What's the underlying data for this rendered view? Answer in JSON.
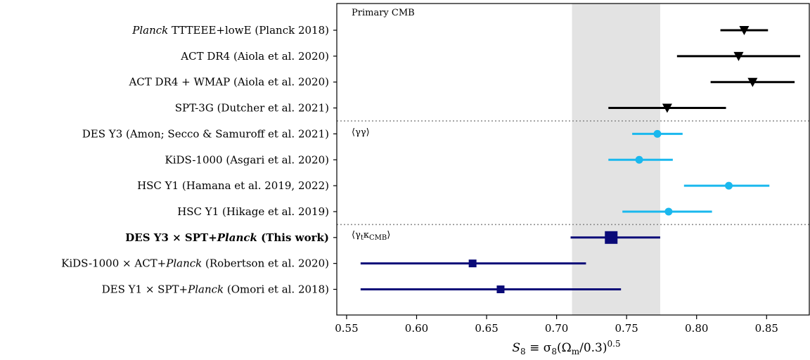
{
  "chart_data": {
    "type": "scatter",
    "xlabel": "S₈ ≡ σ₈(Ωm/0.3)^0.5",
    "xlabel_parts": {
      "s": "S",
      "s_sub": "8",
      "eq": " ≡ σ",
      "sig_sub": "8",
      "open": "(Ω",
      "om_sub": "m",
      "close": "/0.3)",
      "sup": "0.5"
    },
    "xlim": [
      0.543,
      0.881
    ],
    "xticks": [
      0.55,
      0.6,
      0.65,
      0.7,
      0.75,
      0.8,
      0.85
    ],
    "xtick_labels": [
      "0.55",
      "0.60",
      "0.65",
      "0.70",
      "0.75",
      "0.80",
      "0.85"
    ],
    "shaded_band": [
      0.711,
      0.774
    ],
    "groups": [
      {
        "label": "Primary CMB"
      },
      {
        "label": "⟨γγ⟩"
      },
      {
        "label_parts": {
          "pre": "⟨γ",
          "t": "t",
          "kappa": "κ",
          "cmb": "CMB",
          "post": "⟩"
        }
      }
    ],
    "rows": [
      {
        "label": "TTTEEE+lowE (Planck 2018)",
        "italic_prefix": "Planck",
        "value": 0.834,
        "err_low": 0.817,
        "err_high": 0.851,
        "marker": "triangle-down",
        "color": "#000000",
        "bold": false
      },
      {
        "label": "ACT DR4 (Aiola et al. 2020)",
        "value": 0.83,
        "err_low": 0.786,
        "err_high": 0.874,
        "marker": "triangle-down",
        "color": "#000000",
        "bold": false
      },
      {
        "label": "ACT DR4 + WMAP (Aiola et al. 2020)",
        "value": 0.84,
        "err_low": 0.81,
        "err_high": 0.87,
        "marker": "triangle-down",
        "color": "#000000",
        "bold": false
      },
      {
        "label": "SPT-3G (Dutcher et al. 2021)",
        "value": 0.779,
        "err_low": 0.737,
        "err_high": 0.821,
        "marker": "triangle-down",
        "color": "#000000",
        "bold": false
      },
      {
        "label": "DES Y3 (Amon; Secco & Samuroff et al. 2021)",
        "value": 0.772,
        "err_low": 0.754,
        "err_high": 0.79,
        "marker": "circle",
        "color": "#1ab8ee",
        "bold": false
      },
      {
        "label": "KiDS-1000 (Asgari et al. 2020)",
        "value": 0.759,
        "err_low": 0.737,
        "err_high": 0.783,
        "marker": "circle",
        "color": "#1ab8ee",
        "bold": false
      },
      {
        "label": "HSC Y1 (Hamana et al. 2019, 2022)",
        "value": 0.823,
        "err_low": 0.791,
        "err_high": 0.852,
        "marker": "circle",
        "color": "#1ab8ee",
        "bold": false
      },
      {
        "label": "HSC Y1 (Hikage et al. 2019)",
        "value": 0.78,
        "err_low": 0.747,
        "err_high": 0.811,
        "marker": "circle",
        "color": "#1ab8ee",
        "bold": false
      },
      {
        "label": "DES Y3 × SPT+Planck (This work)",
        "parts": [
          "DES Y3 × SPT+",
          "Planck",
          " (This work)"
        ],
        "value": 0.739,
        "err_low": 0.71,
        "err_high": 0.774,
        "marker": "square-large",
        "color": "#0a0a78",
        "bold": true
      },
      {
        "label": "KiDS-1000 × ACT+Planck (Robertson et al. 2020)",
        "parts": [
          "KiDS-1000 × ACT+",
          "Planck",
          " (Robertson et al. 2020)"
        ],
        "value": 0.64,
        "err_low": 0.56,
        "err_high": 0.721,
        "marker": "square",
        "color": "#0a0a78",
        "bold": false
      },
      {
        "label": "DES Y1 × SPT+Planck (Omori et al. 2018)",
        "parts": [
          "DES Y1 × SPT+",
          "Planck",
          " (Omori et al. 2018)"
        ],
        "value": 0.66,
        "err_low": 0.56,
        "err_high": 0.746,
        "marker": "square",
        "color": "#0a0a78",
        "bold": false
      }
    ]
  }
}
